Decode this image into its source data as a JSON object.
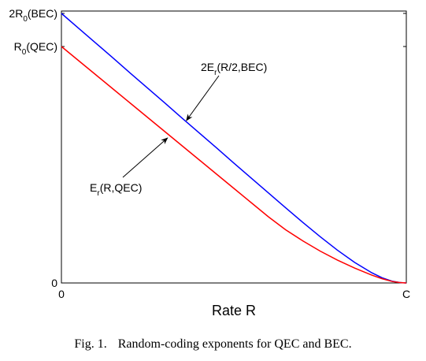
{
  "chart_data": {
    "type": "line",
    "title": "",
    "xlabel": "Rate R",
    "ylabel": "",
    "xlim": [
      0,
      1
    ],
    "ylim": [
      0,
      1.15
    ],
    "x_ticks": [
      {
        "value": 0,
        "label": "0"
      },
      {
        "value": 1,
        "label": "C"
      }
    ],
    "y_ticks": [
      {
        "value": 0,
        "label": "0"
      },
      {
        "value": 1,
        "label_main": "R",
        "label_sub": "0",
        "label_rest": "(QEC)"
      },
      {
        "value": 1.14,
        "label_main": "2R",
        "label_sub": "0",
        "label_rest": "(BEC)"
      }
    ],
    "grid": false,
    "series": [
      {
        "name": "2E_r(R/2,BEC)",
        "color": "#0000ff",
        "x": [
          0,
          0.05,
          0.1,
          0.15,
          0.2,
          0.25,
          0.3,
          0.35,
          0.4,
          0.45,
          0.5,
          0.55,
          0.6,
          0.65,
          0.7,
          0.75,
          0.8,
          0.85,
          0.9,
          0.93,
          0.96,
          0.98,
          1.0
        ],
        "y": [
          1.14,
          1.077,
          1.014,
          0.951,
          0.887,
          0.824,
          0.761,
          0.697,
          0.634,
          0.571,
          0.507,
          0.444,
          0.381,
          0.318,
          0.256,
          0.196,
          0.139,
          0.087,
          0.043,
          0.022,
          0.007,
          0.002,
          0.0
        ]
      },
      {
        "name": "E_r(R,QEC)",
        "color": "#ff0000",
        "x": [
          0,
          0.05,
          0.1,
          0.15,
          0.2,
          0.25,
          0.3,
          0.35,
          0.4,
          0.45,
          0.5,
          0.55,
          0.6,
          0.65,
          0.7,
          0.75,
          0.8,
          0.85,
          0.9,
          0.93,
          0.96,
          0.98,
          1.0
        ],
        "y": [
          1.0,
          0.94,
          0.88,
          0.82,
          0.76,
          0.7,
          0.64,
          0.58,
          0.52,
          0.46,
          0.4,
          0.34,
          0.28,
          0.225,
          0.178,
          0.135,
          0.097,
          0.063,
          0.033,
          0.018,
          0.006,
          0.002,
          0.0
        ]
      }
    ],
    "annotations": [
      {
        "id": "blue",
        "main": "2E",
        "sub": "r",
        "rest": "(R/2,BEC)",
        "arrow_x": 0.36,
        "arrow_y": 0.68
      },
      {
        "id": "red",
        "main": "E",
        "sub": "r",
        "rest": "(R,QEC)",
        "arrow_x": 0.31,
        "arrow_y": 0.61
      }
    ]
  },
  "caption": {
    "number": "Fig. 1.",
    "text": "Random-coding exponents for QEC and BEC."
  }
}
